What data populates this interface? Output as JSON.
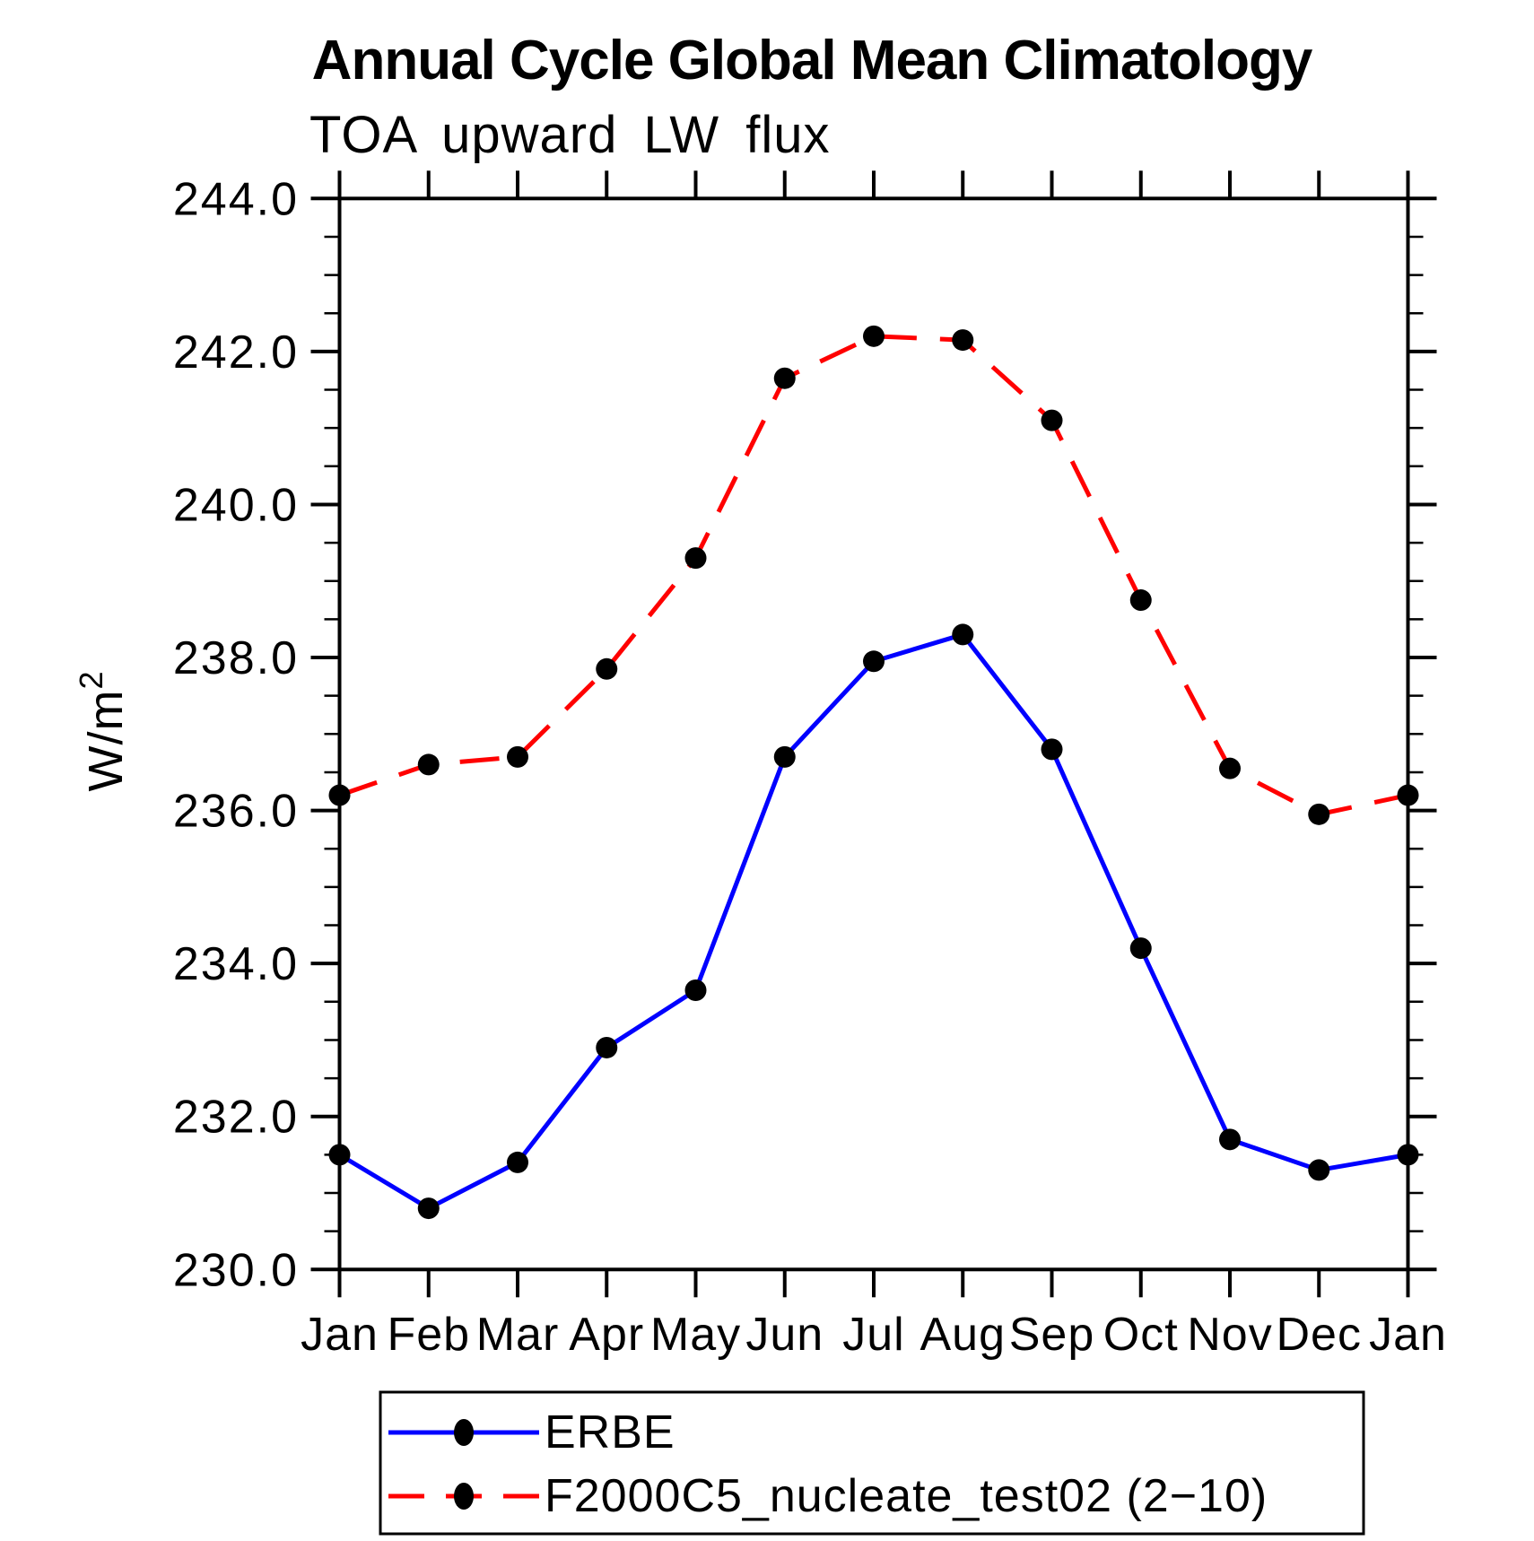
{
  "chart_data": {
    "type": "line",
    "title": "Annual Cycle Global Mean Climatology",
    "subtitle": "TOA upward LW flux",
    "ylabel": "W/m²",
    "xlabel": "",
    "categories": [
      "Jan",
      "Feb",
      "Mar",
      "Apr",
      "May",
      "Jun",
      "Jul",
      "Aug",
      "Sep",
      "Oct",
      "Nov",
      "Dec",
      "Jan"
    ],
    "ylim": [
      230.0,
      244.0
    ],
    "ytick_interval": 2.0,
    "ytick_minor_interval": 0.5,
    "ytick_labels": [
      "244.0",
      "242.0",
      "240.0",
      "238.0",
      "236.0",
      "234.0",
      "232.0",
      "230.0"
    ],
    "grid": false,
    "legend_position": "bottom",
    "axis_color": "#000000",
    "marker_shape": "filled-circle",
    "series": [
      {
        "name": "ERBE",
        "color": "#0000ff",
        "line_style": "solid",
        "marker_color": "#000000",
        "values": [
          231.5,
          230.8,
          231.4,
          232.9,
          233.65,
          236.7,
          237.95,
          238.3,
          236.8,
          234.2,
          231.7,
          231.3,
          231.5
        ]
      },
      {
        "name": "F2000C5_nucleate_test02 (2−10)",
        "color": "#ff0000",
        "line_style": "dashed",
        "marker_color": "#000000",
        "values": [
          236.2,
          236.6,
          236.7,
          237.85,
          239.3,
          241.65,
          242.2,
          242.15,
          241.1,
          238.75,
          236.55,
          235.95,
          236.2
        ]
      }
    ]
  }
}
